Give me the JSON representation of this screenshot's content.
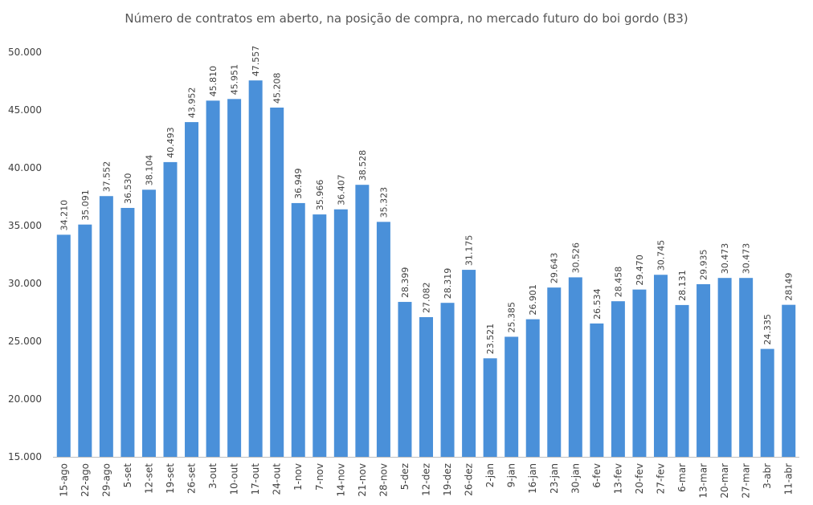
{
  "chart_data": {
    "type": "bar",
    "title": "Número de contratos em aberto, na posição de compra, no mercado futuro do boi gordo (B3)",
    "xlabel": "",
    "ylabel": "",
    "ylim": [
      15000,
      50000
    ],
    "y_ticks": [
      {
        "value": 15000,
        "label": "15.000"
      },
      {
        "value": 20000,
        "label": "20.000"
      },
      {
        "value": 25000,
        "label": "25.000"
      },
      {
        "value": 30000,
        "label": "30.000"
      },
      {
        "value": 35000,
        "label": "35.000"
      },
      {
        "value": 40000,
        "label": "40.000"
      },
      {
        "value": 45000,
        "label": "45.000"
      },
      {
        "value": 50000,
        "label": "50.000"
      }
    ],
    "grid": false,
    "legend": "none",
    "bar_color": "#4a90d9",
    "categories": [
      "15-ago",
      "22-ago",
      "29-ago",
      "5-set",
      "12-set",
      "19-set",
      "26-set",
      "3-out",
      "10-out",
      "17-out",
      "24-out",
      "1-nov",
      "7-nov",
      "14-nov",
      "21-nov",
      "28-nov",
      "5-dez",
      "12-dez",
      "19-dez",
      "26-dez",
      "2-jan",
      "9-jan",
      "16-jan",
      "23-jan",
      "30-jan",
      "6-fev",
      "13-fev",
      "20-fev",
      "27-fev",
      "6-mar",
      "13-mar",
      "20-mar",
      "27-mar",
      "3-abr",
      "11-abr"
    ],
    "values": [
      34210,
      35091,
      37552,
      36530,
      38104,
      40493,
      43952,
      45810,
      45951,
      47557,
      45208,
      36949,
      35966,
      36407,
      38528,
      35323,
      28399,
      27082,
      28319,
      31175,
      23521,
      25385,
      26901,
      29643,
      30526,
      26534,
      28458,
      29470,
      30745,
      28131,
      29935,
      30473,
      30473,
      24335,
      28149
    ],
    "data_labels": [
      "34.210",
      "35.091",
      "37.552",
      "36.530",
      "38.104",
      "40.493",
      "43.952",
      "45.810",
      "45.951",
      "47.557",
      "45.208",
      "36.949",
      "35.966",
      "36.407",
      "38.528",
      "35.323",
      "28.399",
      "27.082",
      "28.319",
      "31.175",
      "23.521",
      "25.385",
      "26.901",
      "29.643",
      "30.526",
      "26.534",
      "28.458",
      "29.470",
      "30.745",
      "28.131",
      "29.935",
      "30.473",
      "30.473",
      "24.335",
      "28149"
    ]
  }
}
